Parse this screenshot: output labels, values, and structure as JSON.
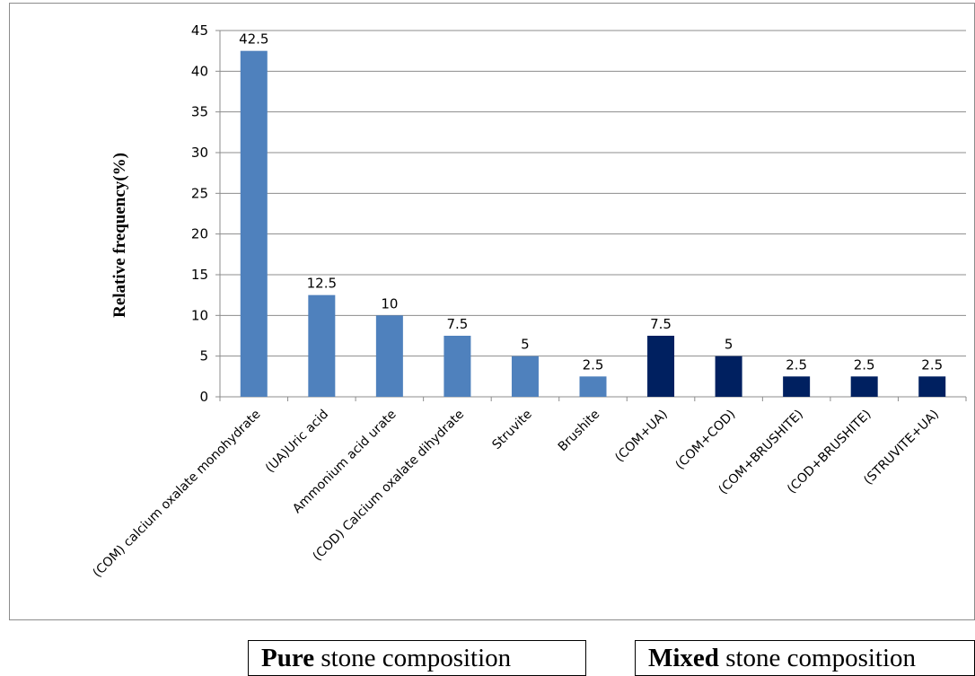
{
  "chart_data": {
    "type": "bar",
    "ylabel": "Relative frequency(%)",
    "xlabel": "",
    "ylim": [
      0,
      45
    ],
    "yticks": [
      0,
      5,
      10,
      15,
      20,
      25,
      30,
      35,
      40,
      45
    ],
    "grid": true,
    "categories": [
      "(COM) calcium oxalate monohydrate",
      "(UA)Uric acid",
      "Ammonium acid urate",
      "(COD) Calcium oxalate dihydrate",
      "Struvite",
      "Brushite",
      "(COM+UA)",
      "(COM+COD)",
      "(COM+BRUSHITE)",
      "(COD+BRUSHITE)",
      "(STRUVITE+UA)"
    ],
    "values": [
      42.5,
      12.5,
      10,
      7.5,
      5,
      2.5,
      7.5,
      5,
      2.5,
      2.5,
      2.5
    ],
    "data_labels": [
      "42.5",
      "12.5",
      "10",
      "7.5",
      "5",
      "2.5",
      "7.5",
      "5",
      "2.5",
      "2.5",
      "2.5"
    ],
    "groups": [
      {
        "strong": "Pure",
        "rest": " stone composition",
        "color": "#4f81bd",
        "count": 6
      },
      {
        "strong": "Mixed",
        "rest": " stone composition",
        "color": "#002060",
        "count": 5
      }
    ]
  }
}
